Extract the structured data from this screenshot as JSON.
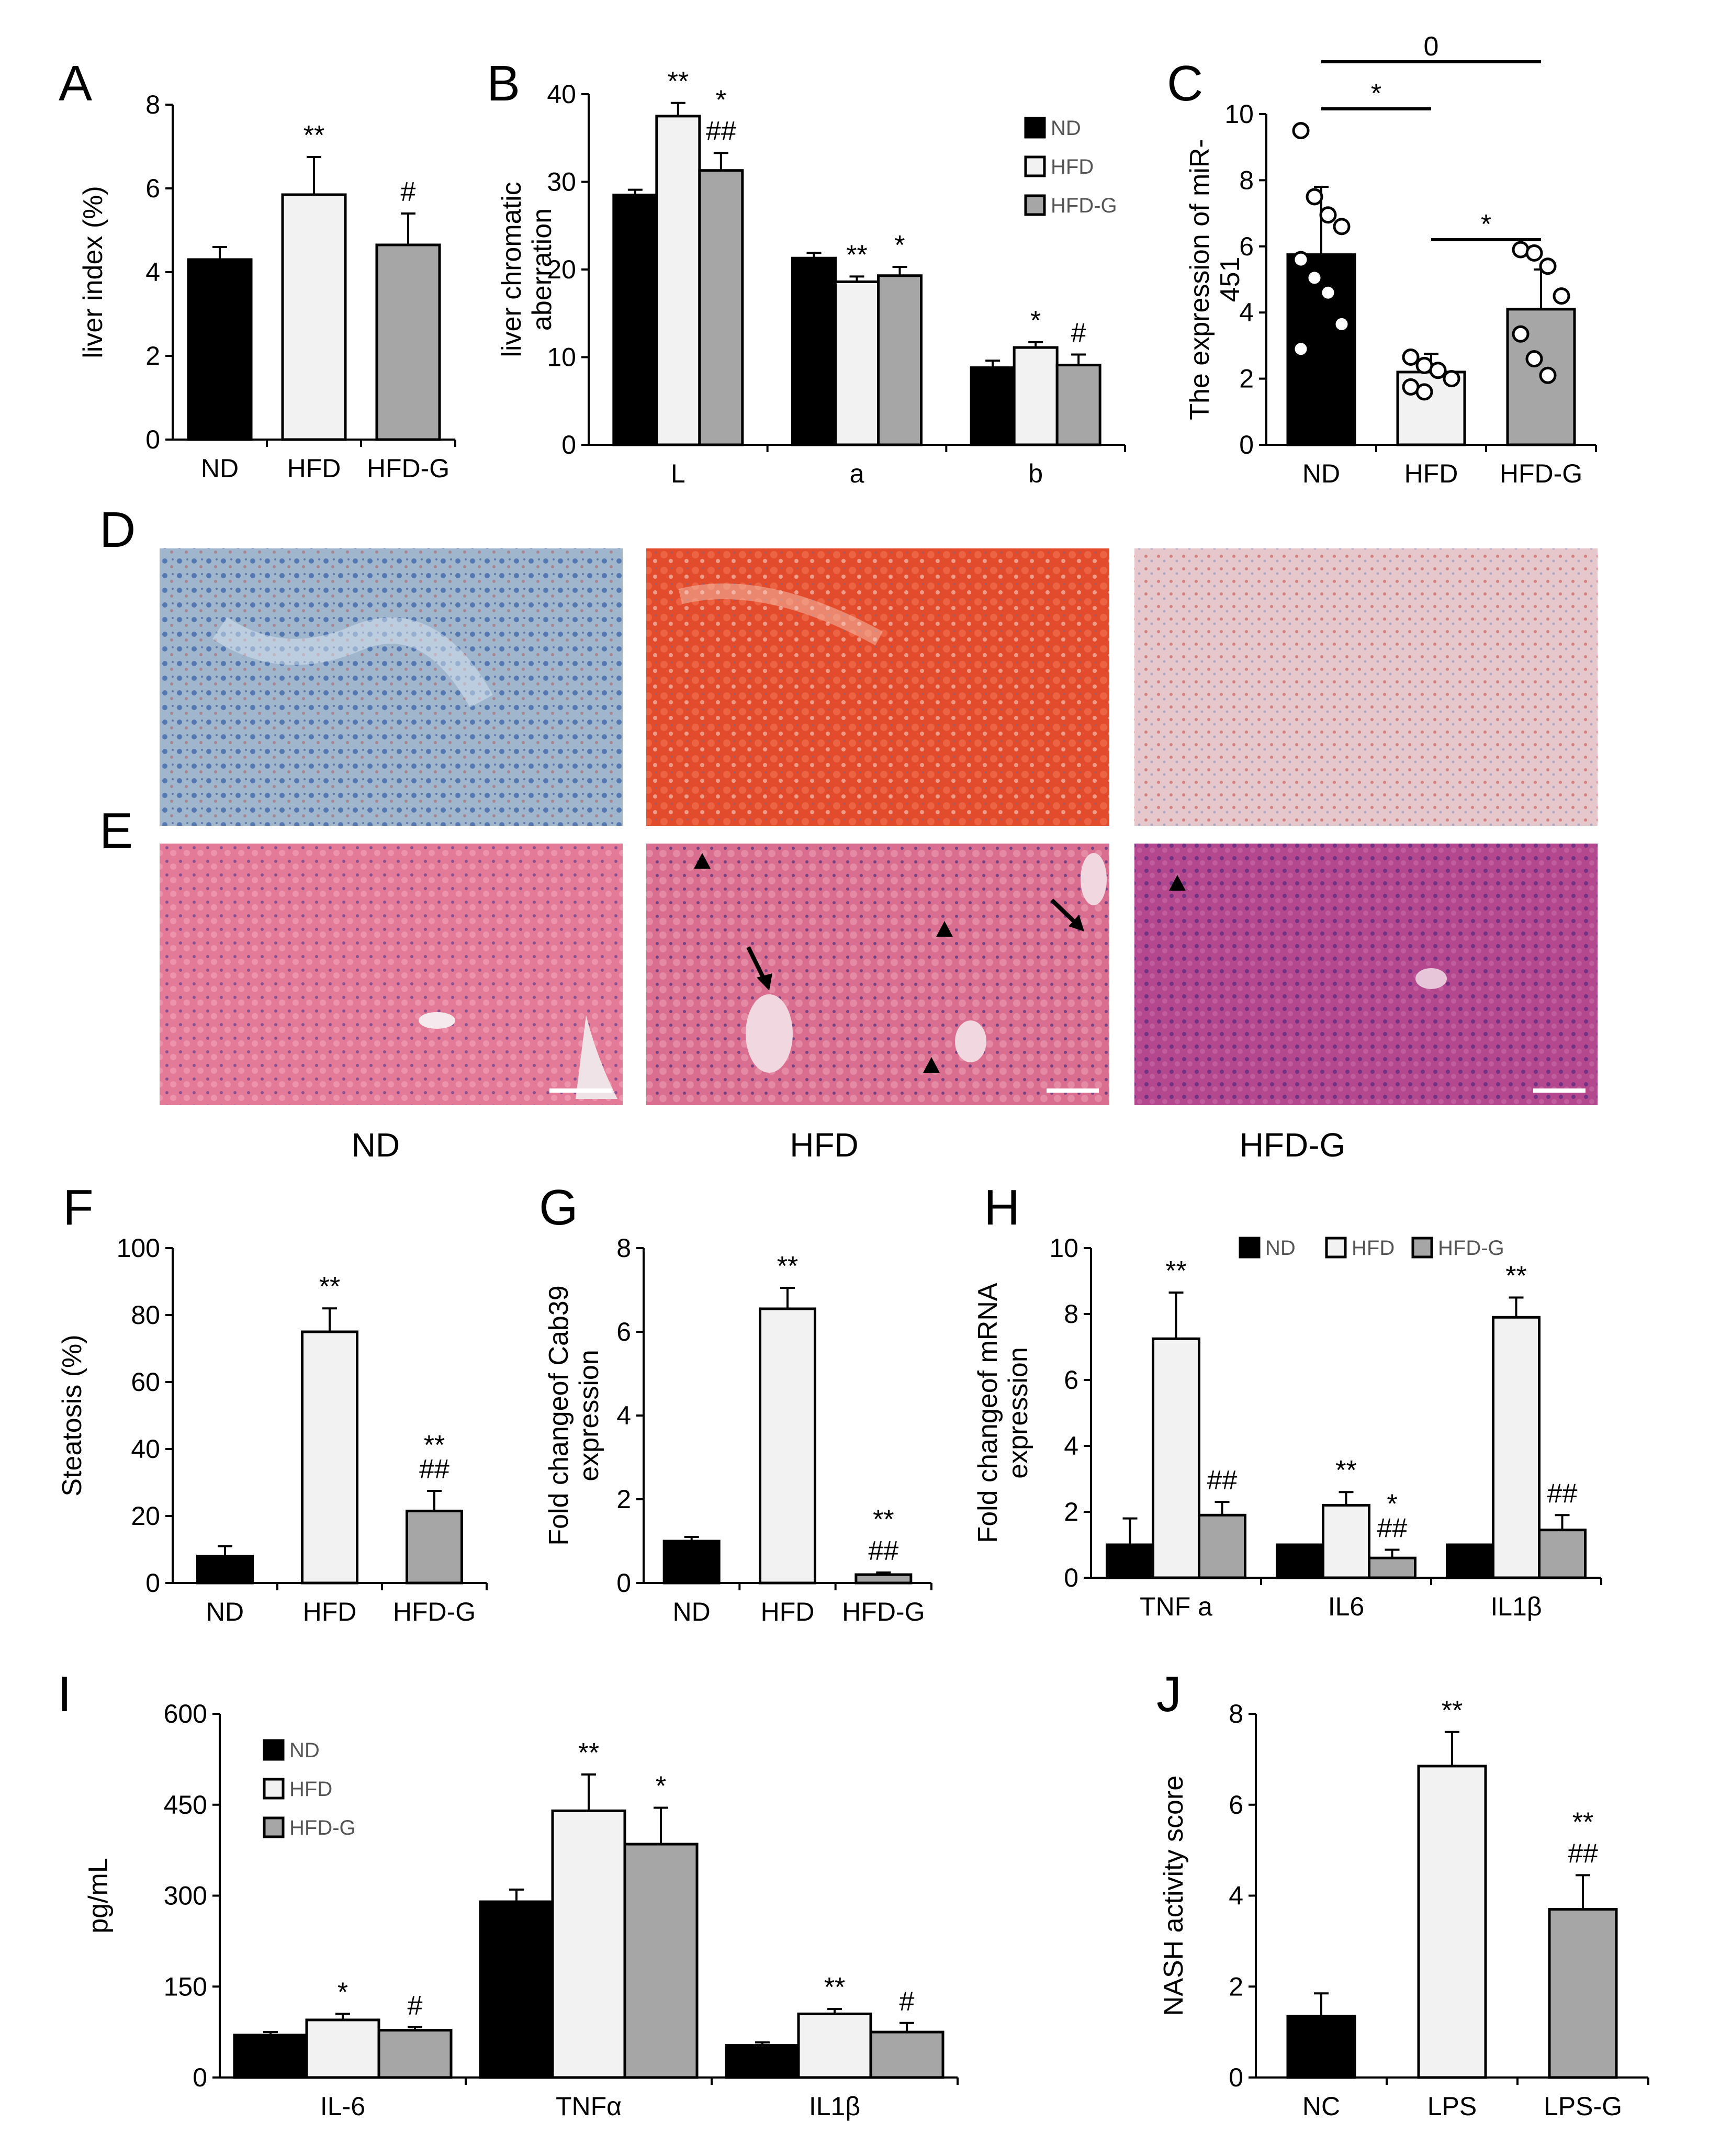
{
  "colors": {
    "ND": "#000000",
    "HFD": "#f2f2f2",
    "HFD-G": "#a6a6a6",
    "line": "#000000"
  },
  "panel_labels": {
    "A": "A",
    "B": "B",
    "C": "C",
    "D": "D",
    "E": "E",
    "F": "F",
    "G": "G",
    "H": "H",
    "I": "I",
    "J": "J"
  },
  "image_groups": [
    "ND",
    "HFD",
    "HFD-G"
  ],
  "chart_data": [
    {
      "id": "A",
      "type": "bar",
      "ylabel": "liver index (%)",
      "ylim": [
        0,
        8
      ],
      "yticks": [
        0,
        2,
        4,
        6,
        8
      ],
      "categories": [
        "ND",
        "HFD",
        "HFD-G"
      ],
      "values": [
        4.3,
        5.85,
        4.65
      ],
      "errors": [
        0.3,
        0.9,
        0.75
      ],
      "annotations": [
        "",
        "**",
        "#"
      ]
    },
    {
      "id": "B",
      "type": "bar",
      "ylabel": "liver chromatic aberration",
      "ylim": [
        0,
        40
      ],
      "yticks": [
        0,
        10,
        20,
        30,
        40
      ],
      "categories": [
        "L",
        "a",
        "b"
      ],
      "series": [
        {
          "name": "ND",
          "values": [
            28.5,
            21.3,
            8.8
          ],
          "errors": [
            0.6,
            0.6,
            0.8
          ]
        },
        {
          "name": "HFD",
          "values": [
            37.5,
            18.6,
            11.1
          ],
          "errors": [
            1.5,
            0.6,
            0.6
          ]
        },
        {
          "name": "HFD-G",
          "values": [
            31.3,
            19.3,
            9.1
          ],
          "errors": [
            2.0,
            1.0,
            1.2
          ]
        }
      ],
      "annotations": [
        [
          "",
          "**",
          "*\n##"
        ],
        [
          "",
          "**",
          "*"
        ],
        [
          "",
          "*",
          "#"
        ]
      ],
      "legend": "top-right"
    },
    {
      "id": "C",
      "type": "bar",
      "ylabel": "The expression of miR-451",
      "ylim": [
        0,
        10
      ],
      "yticks": [
        0,
        2,
        4,
        6,
        8,
        10
      ],
      "categories": [
        "ND",
        "HFD",
        "HFD-G"
      ],
      "values": [
        5.75,
        2.2,
        4.1
      ],
      "errors": [
        2.05,
        0.55,
        1.2
      ],
      "points": [
        [
          9.5,
          7.5,
          6.95,
          6.6,
          5.6,
          5.05,
          4.6,
          3.65,
          2.9
        ],
        [
          2.65,
          2.4,
          2.25,
          2.0,
          1.75,
          1.6
        ],
        [
          5.9,
          5.8,
          5.4,
          4.5,
          3.35,
          2.6,
          2.1
        ]
      ],
      "brackets": [
        {
          "from": 0,
          "to": 1,
          "label": "*"
        },
        {
          "from": 1,
          "to": 2,
          "label": "*"
        },
        {
          "from": 0,
          "to": 2,
          "label": "0"
        }
      ]
    },
    {
      "id": "F",
      "type": "bar",
      "ylabel": "Steatosis (%)",
      "ylim": [
        0,
        100
      ],
      "yticks": [
        0,
        20,
        40,
        60,
        80,
        100
      ],
      "categories": [
        "ND",
        "HFD",
        "HFD-G"
      ],
      "values": [
        8,
        75,
        21.5
      ],
      "errors": [
        3,
        7,
        6
      ],
      "annotations": [
        "",
        "**",
        "**\n##"
      ]
    },
    {
      "id": "G",
      "type": "bar",
      "ylabel": "Fold changeof Cab39 expression",
      "ylim": [
        0,
        8
      ],
      "yticks": [
        0,
        2,
        4,
        6,
        8
      ],
      "categories": [
        "ND",
        "HFD",
        "HFD-G"
      ],
      "values": [
        1.0,
        6.55,
        0.2
      ],
      "errors": [
        0.1,
        0.5,
        0.05
      ],
      "annotations": [
        "",
        "**",
        "**\n##"
      ]
    },
    {
      "id": "H",
      "type": "bar",
      "ylabel": "Fold changeof mRNA expression",
      "ylim": [
        0,
        10
      ],
      "yticks": [
        0,
        2,
        4,
        6,
        8,
        10
      ],
      "categories": [
        "TNF a",
        "IL6",
        "IL1β"
      ],
      "series": [
        {
          "name": "ND",
          "values": [
            1.0,
            1.0,
            1.0
          ],
          "errors": [
            0.8,
            0,
            0
          ]
        },
        {
          "name": "HFD",
          "values": [
            7.25,
            2.2,
            7.9
          ],
          "errors": [
            1.4,
            0.4,
            0.6
          ]
        },
        {
          "name": "HFD-G",
          "values": [
            1.9,
            0.6,
            1.45
          ],
          "errors": [
            0.4,
            0.25,
            0.45
          ]
        }
      ],
      "annotations": [
        [
          "",
          "**",
          "##"
        ],
        [
          "",
          "**",
          "*\n##"
        ],
        [
          "",
          "**",
          "##"
        ]
      ],
      "legend": "top"
    },
    {
      "id": "I",
      "type": "bar",
      "ylabel": "pg/mL",
      "ylim": [
        0,
        600
      ],
      "yticks": [
        0,
        150,
        300,
        450,
        600
      ],
      "categories": [
        "IL-6",
        "TNFα",
        "IL1β"
      ],
      "series": [
        {
          "name": "ND",
          "values": [
            70,
            290,
            53
          ],
          "errors": [
            5,
            20,
            5
          ]
        },
        {
          "name": "HFD",
          "values": [
            95,
            440,
            105
          ],
          "errors": [
            10,
            60,
            8
          ]
        },
        {
          "name": "HFD-G",
          "values": [
            78,
            385,
            75
          ],
          "errors": [
            5,
            60,
            15
          ]
        }
      ],
      "annotations": [
        [
          "",
          "*",
          "#"
        ],
        [
          "",
          "**",
          "*"
        ],
        [
          "",
          "**",
          "#"
        ]
      ],
      "legend": "top-left"
    },
    {
      "id": "J",
      "type": "bar",
      "ylabel": "NASH activity score",
      "ylim": [
        0,
        8
      ],
      "yticks": [
        0,
        2,
        4,
        6,
        8
      ],
      "categories": [
        "NC",
        "LPS",
        "LPS-G"
      ],
      "values": [
        1.35,
        6.85,
        3.7
      ],
      "errors": [
        0.5,
        0.75,
        0.75
      ],
      "annotations": [
        "",
        "**",
        "**\n##"
      ]
    }
  ]
}
